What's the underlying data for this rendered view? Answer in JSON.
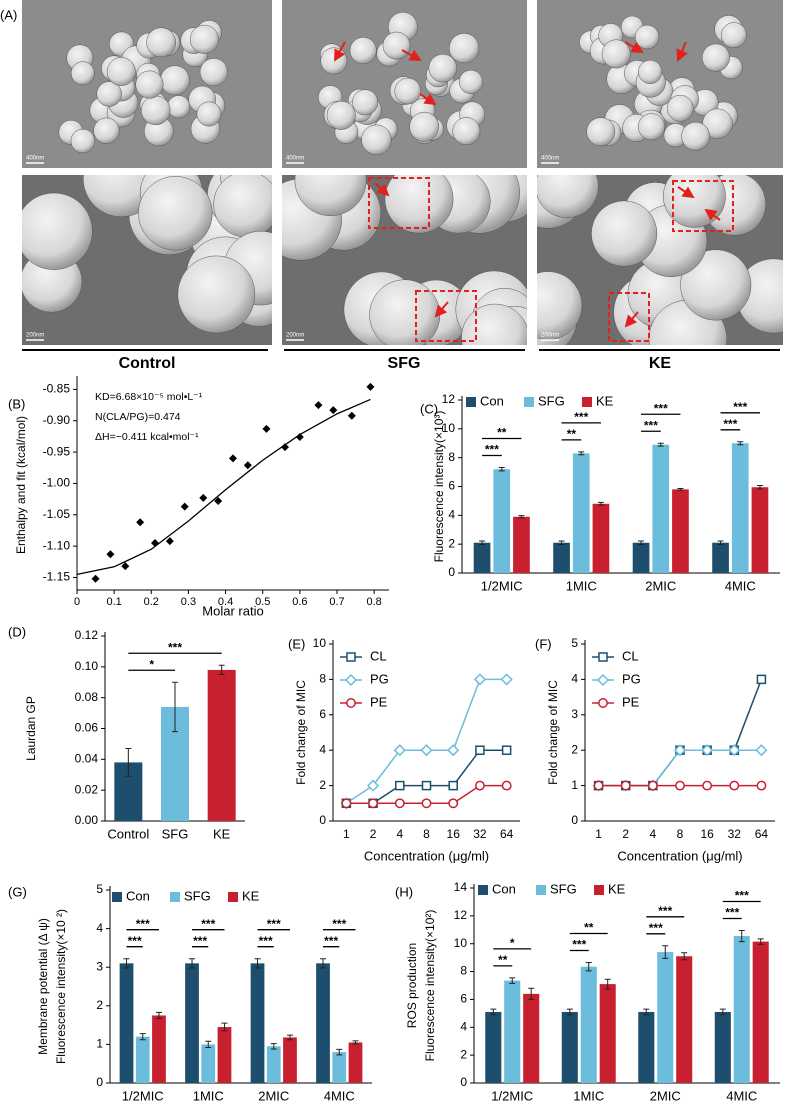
{
  "panel_a": {
    "label": "(A)",
    "columns": [
      "Control",
      "SFG",
      "KE"
    ],
    "scale_bars": [
      "400nm",
      "400nm",
      "400nm",
      "200nm",
      "200nm",
      "200nm"
    ]
  },
  "chart_data": [
    {
      "panel": "(B)",
      "type": "scatter",
      "xlabel": "Molar ratio",
      "ylabel": [
        "Enthalpy and fit (kcal/mol)"
      ],
      "annotations": [
        "KD=6.68×10⁻⁵ mol•L⁻¹",
        "N(CLA/PG)=0.474",
        "ΔH=−0.411 kcal•mol⁻¹"
      ],
      "xlim": [
        0,
        0.84
      ],
      "xticks": [
        0,
        0.1,
        0.2,
        0.3,
        0.4,
        0.5,
        0.6,
        0.7,
        0.8
      ],
      "ylim": [
        -1.17,
        -0.835
      ],
      "yticks": [
        -1.15,
        {
          "value": -1.1,
          "label": "-1.10"
        },
        -1.05,
        {
          "value": -1,
          "label": "-1.00"
        },
        -0.95,
        {
          "value": -0.9,
          "label": "-0.90"
        },
        -0.85
      ],
      "series": [
        {
          "type": "scatter",
          "color": "#000000",
          "x": [
            0.05,
            0.09,
            0.13,
            0.17,
            0.21,
            0.25,
            0.29,
            0.34,
            0.38,
            0.42,
            0.46,
            0.51,
            0.56,
            0.6,
            0.65,
            0.69,
            0.74,
            0.79
          ],
          "values": [
            -1.152,
            -1.113,
            -1.132,
            -1.062,
            -1.095,
            -1.092,
            -1.037,
            -1.023,
            -1.028,
            -0.96,
            -0.971,
            -0.913,
            -0.942,
            -0.926,
            -0.875,
            -0.883,
            -0.892,
            -0.846
          ]
        },
        {
          "type": "line",
          "color": "#000000",
          "x": [
            0,
            0.1,
            0.2,
            0.3,
            0.4,
            0.5,
            0.6,
            0.7,
            0.79
          ],
          "values": [
            -1.145,
            -1.133,
            -1.105,
            -1.06,
            -1.01,
            -0.963,
            -0.922,
            -0.889,
            -0.866
          ]
        }
      ]
    },
    {
      "panel": "(C)",
      "type": "bar",
      "ylabel": [
        "Fluorescence intensity(×10³)"
      ],
      "categories": [
        "1/2MIC",
        "1MIC",
        "2MIC",
        "4MIC"
      ],
      "ylim": [
        0,
        12
      ],
      "yticks": [
        0,
        2,
        4,
        6,
        8,
        10,
        12
      ],
      "series": [
        {
          "name": "Con",
          "color": "#1d4e6e",
          "values": [
            2.1,
            2.1,
            2.1,
            2.1
          ],
          "errors": [
            0.12,
            0.12,
            0.12,
            0.12
          ]
        },
        {
          "name": "SFG",
          "color": "#6cbcdb",
          "values": [
            7.2,
            8.3,
            8.9,
            9.0
          ],
          "errors": [
            0.12,
            0.1,
            0.1,
            0.1
          ]
        },
        {
          "name": "KE",
          "color": "#c8202f",
          "values": [
            3.9,
            4.8,
            5.8,
            5.95
          ],
          "errors": [
            0.08,
            0.1,
            0.06,
            0.12
          ]
        }
      ],
      "significance": [
        {
          "category": 0,
          "between": [
            0,
            1
          ],
          "label": "***"
        },
        {
          "category": 0,
          "between": [
            0,
            2
          ],
          "label": "**"
        },
        {
          "category": 1,
          "between": [
            0,
            1
          ],
          "label": "**"
        },
        {
          "category": 1,
          "between": [
            0,
            2
          ],
          "label": "***"
        },
        {
          "category": 2,
          "between": [
            0,
            1
          ],
          "label": "***"
        },
        {
          "category": 2,
          "between": [
            0,
            2
          ],
          "label": "***"
        },
        {
          "category": 3,
          "between": [
            0,
            1
          ],
          "label": "***"
        },
        {
          "category": 3,
          "between": [
            0,
            2
          ],
          "label": "***"
        }
      ]
    },
    {
      "panel": "(D)",
      "type": "bar",
      "ylabel": [
        "Laurdan GP"
      ],
      "categories": [
        "Control",
        "SFG",
        "KE"
      ],
      "values": [
        0.038,
        0.074,
        0.098
      ],
      "errors": [
        0.009,
        0.016,
        0.003
      ],
      "colors": [
        "#1d4e6e",
        "#6cbcdb",
        "#c8202f"
      ],
      "ylim": [
        0,
        0.12
      ],
      "yticks": [
        {
          "value": 0,
          "label": "0.00"
        },
        0.02,
        0.04,
        0.06,
        0.08,
        {
          "value": 0.1,
          "label": "0.10"
        },
        0.12
      ],
      "significance": [
        {
          "between": [
            0,
            1
          ],
          "label": "*"
        },
        {
          "between": [
            0,
            2
          ],
          "label": "***"
        }
      ]
    },
    {
      "panel": "(E)",
      "type": "line",
      "xlabel": "Concentration (μg/ml)",
      "ylabel": [
        "Fold change of MIC"
      ],
      "categories": [
        "1",
        "2",
        "4",
        "8",
        "16",
        "32",
        "64"
      ],
      "ylim": [
        0,
        10
      ],
      "yticks": [
        0,
        2,
        4,
        6,
        8,
        10
      ],
      "series": [
        {
          "name": "CL",
          "color": "#1d4e6e",
          "marker": "square",
          "values": [
            1,
            1,
            2,
            2,
            2,
            4,
            4
          ]
        },
        {
          "name": "PG",
          "color": "#6cbcdb",
          "marker": "diamond",
          "values": [
            1,
            2,
            4,
            4,
            4,
            8,
            8
          ]
        },
        {
          "name": "PE",
          "color": "#c8202f",
          "marker": "circle",
          "values": [
            1,
            1,
            1,
            1,
            1,
            2,
            2
          ]
        }
      ]
    },
    {
      "panel": "(F)",
      "type": "line",
      "xlabel": "Concentration (μg/ml)",
      "ylabel": [
        "Fold change of MIC"
      ],
      "categories": [
        "1",
        "2",
        "4",
        "8",
        "16",
        "32",
        "64"
      ],
      "ylim": [
        0,
        5
      ],
      "yticks": [
        0,
        1,
        2,
        3,
        4,
        5
      ],
      "series": [
        {
          "name": "CL",
          "color": "#1d4e6e",
          "marker": "square",
          "values": [
            1,
            1,
            1,
            2,
            2,
            2,
            4
          ]
        },
        {
          "name": "PG",
          "color": "#6cbcdb",
          "marker": "diamond",
          "values": [
            1,
            1,
            1,
            2,
            2,
            2,
            2
          ]
        },
        {
          "name": "PE",
          "color": "#c8202f",
          "marker": "circle",
          "values": [
            1,
            1,
            1,
            1,
            1,
            1,
            1
          ]
        }
      ]
    },
    {
      "panel": "(G)",
      "type": "bar",
      "ylabel": [
        "Membrane potential (Δ ψ)",
        "Fluorescence intensity(×10 ²)"
      ],
      "categories": [
        "1/2MIC",
        "1MIC",
        "2MIC",
        "4MIC"
      ],
      "ylim": [
        0,
        5
      ],
      "yticks": [
        0,
        1,
        2,
        3,
        4,
        5
      ],
      "series": [
        {
          "name": "Con",
          "color": "#1d4e6e",
          "values": [
            3.1,
            3.1,
            3.1,
            3.1
          ],
          "errors": [
            0.12,
            0.12,
            0.12,
            0.12
          ]
        },
        {
          "name": "SFG",
          "color": "#6cbcdb",
          "values": [
            1.2,
            1.0,
            0.95,
            0.8
          ],
          "errors": [
            0.08,
            0.08,
            0.07,
            0.07
          ]
        },
        {
          "name": "KE",
          "color": "#c8202f",
          "values": [
            1.75,
            1.45,
            1.18,
            1.05
          ],
          "errors": [
            0.08,
            0.1,
            0.06,
            0.04
          ]
        }
      ],
      "significance": [
        {
          "category": 0,
          "between": [
            0,
            1
          ],
          "label": "***"
        },
        {
          "category": 0,
          "between": [
            0,
            2
          ],
          "label": "***"
        },
        {
          "category": 1,
          "between": [
            0,
            1
          ],
          "label": "***"
        },
        {
          "category": 1,
          "between": [
            0,
            2
          ],
          "label": "***"
        },
        {
          "category": 2,
          "between": [
            0,
            1
          ],
          "label": "***"
        },
        {
          "category": 2,
          "between": [
            0,
            2
          ],
          "label": "***"
        },
        {
          "category": 3,
          "between": [
            0,
            1
          ],
          "label": "***"
        },
        {
          "category": 3,
          "between": [
            0,
            2
          ],
          "label": "***"
        }
      ]
    },
    {
      "panel": "(H)",
      "type": "bar",
      "ylabel": [
        "ROS production",
        "Fluorescence intensity(×10²)"
      ],
      "categories": [
        "1/2MIC",
        "1MIC",
        "2MIC",
        "4MIC"
      ],
      "ylim": [
        0,
        14
      ],
      "yticks": [
        0,
        2,
        4,
        6,
        8,
        10,
        12,
        14
      ],
      "series": [
        {
          "name": "Con",
          "color": "#1d4e6e",
          "values": [
            5.1,
            5.1,
            5.1,
            5.1
          ],
          "errors": [
            0.2,
            0.2,
            0.2,
            0.2
          ]
        },
        {
          "name": "SFG",
          "color": "#6cbcdb",
          "values": [
            7.35,
            8.35,
            9.4,
            10.55
          ],
          "errors": [
            0.2,
            0.3,
            0.45,
            0.4
          ]
        },
        {
          "name": "KE",
          "color": "#c8202f",
          "values": [
            6.4,
            7.1,
            9.1,
            10.15
          ],
          "errors": [
            0.4,
            0.35,
            0.25,
            0.2
          ]
        }
      ],
      "significance": [
        {
          "category": 0,
          "between": [
            0,
            1
          ],
          "label": "**"
        },
        {
          "category": 0,
          "between": [
            0,
            2
          ],
          "label": "*"
        },
        {
          "category": 1,
          "between": [
            0,
            1
          ],
          "label": "***"
        },
        {
          "category": 1,
          "between": [
            0,
            2
          ],
          "label": "**"
        },
        {
          "category": 2,
          "between": [
            0,
            1
          ],
          "label": "***"
        },
        {
          "category": 2,
          "between": [
            0,
            2
          ],
          "label": "***"
        },
        {
          "category": 3,
          "between": [
            0,
            1
          ],
          "label": "***"
        },
        {
          "category": 3,
          "between": [
            0,
            2
          ],
          "label": "***"
        }
      ]
    }
  ]
}
